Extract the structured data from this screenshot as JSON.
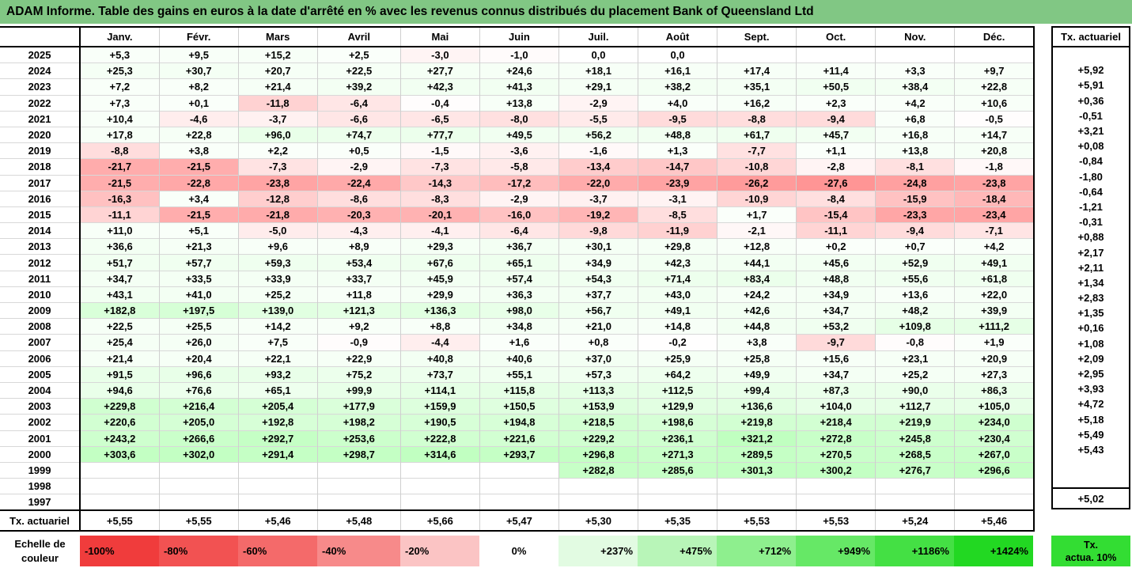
{
  "title": "ADAM Informe. Table des gains en euros à la date d'arrêté en % avec les revenus connus distribués du placement Bank of Queensland Ltd",
  "months": [
    "Janv.",
    "Févr.",
    "Mars",
    "Avril",
    "Mai",
    "Juin",
    "Juil.",
    "Août",
    "Sept.",
    "Oct.",
    "Nov.",
    "Déc."
  ],
  "side_header": "Tx. actuariel",
  "rows": [
    {
      "year": "2025",
      "cells": [
        "+5,3",
        "+9,5",
        "+15,2",
        "+2,5",
        "-3,0",
        "-1,0",
        "0,0",
        "0,0",
        "",
        "",
        "",
        ""
      ],
      "tx": ""
    },
    {
      "year": "2024",
      "cells": [
        "+25,3",
        "+30,7",
        "+20,7",
        "+22,5",
        "+27,7",
        "+24,6",
        "+18,1",
        "+16,1",
        "+17,4",
        "+11,4",
        "+3,3",
        "+9,7"
      ],
      "tx": "+5,92"
    },
    {
      "year": "2023",
      "cells": [
        "+7,2",
        "+8,2",
        "+21,4",
        "+39,2",
        "+42,3",
        "+41,3",
        "+29,1",
        "+38,2",
        "+35,1",
        "+50,5",
        "+38,4",
        "+22,8"
      ],
      "tx": "+5,91"
    },
    {
      "year": "2022",
      "cells": [
        "+7,3",
        "+0,1",
        "-11,8",
        "-6,4",
        "-0,4",
        "+13,8",
        "-2,9",
        "+4,0",
        "+16,2",
        "+2,3",
        "+4,2",
        "+10,6"
      ],
      "tx": "+0,36"
    },
    {
      "year": "2021",
      "cells": [
        "+10,4",
        "-4,6",
        "-3,7",
        "-6,6",
        "-6,5",
        "-8,0",
        "-5,5",
        "-9,5",
        "-8,8",
        "-9,4",
        "+6,8",
        "-0,5"
      ],
      "tx": "-0,51"
    },
    {
      "year": "2020",
      "cells": [
        "+17,8",
        "+22,8",
        "+96,0",
        "+74,7",
        "+77,7",
        "+49,5",
        "+56,2",
        "+48,8",
        "+61,7",
        "+45,7",
        "+16,8",
        "+14,7"
      ],
      "tx": "+3,21"
    },
    {
      "year": "2019",
      "cells": [
        "-8,8",
        "+3,8",
        "+2,2",
        "+0,5",
        "-1,5",
        "-3,6",
        "-1,6",
        "+1,3",
        "-7,7",
        "+1,1",
        "+13,8",
        "+20,8"
      ],
      "tx": "+0,08"
    },
    {
      "year": "2018",
      "cells": [
        "-21,7",
        "-21,5",
        "-7,3",
        "-2,9",
        "-7,3",
        "-5,8",
        "-13,4",
        "-14,7",
        "-10,8",
        "-2,8",
        "-8,1",
        "-1,8"
      ],
      "tx": "-0,84"
    },
    {
      "year": "2017",
      "cells": [
        "-21,5",
        "-22,8",
        "-23,8",
        "-22,4",
        "-14,3",
        "-17,2",
        "-22,0",
        "-23,9",
        "-26,2",
        "-27,6",
        "-24,8",
        "-23,8"
      ],
      "tx": "-1,80"
    },
    {
      "year": "2016",
      "cells": [
        "-16,3",
        "+3,4",
        "-12,8",
        "-8,6",
        "-8,3",
        "-2,9",
        "-3,7",
        "-3,1",
        "-10,9",
        "-8,4",
        "-15,9",
        "-18,4"
      ],
      "tx": "-0,64"
    },
    {
      "year": "2015",
      "cells": [
        "-11,1",
        "-21,5",
        "-21,8",
        "-20,3",
        "-20,1",
        "-16,0",
        "-19,2",
        "-8,5",
        "+1,7",
        "-15,4",
        "-23,3",
        "-23,4"
      ],
      "tx": "-1,21"
    },
    {
      "year": "2014",
      "cells": [
        "+11,0",
        "+5,1",
        "-5,0",
        "-4,3",
        "-4,1",
        "-6,4",
        "-9,8",
        "-11,9",
        "-2,1",
        "-11,1",
        "-9,4",
        "-7,1"
      ],
      "tx": "-0,31"
    },
    {
      "year": "2013",
      "cells": [
        "+36,6",
        "+21,3",
        "+9,6",
        "+8,9",
        "+29,3",
        "+36,7",
        "+30,1",
        "+29,8",
        "+12,8",
        "+0,2",
        "+0,7",
        "+4,2"
      ],
      "tx": "+0,88"
    },
    {
      "year": "2012",
      "cells": [
        "+51,7",
        "+57,7",
        "+59,3",
        "+53,4",
        "+67,6",
        "+65,1",
        "+34,9",
        "+42,3",
        "+44,1",
        "+45,6",
        "+52,9",
        "+49,1"
      ],
      "tx": "+2,17"
    },
    {
      "year": "2011",
      "cells": [
        "+34,7",
        "+33,5",
        "+33,9",
        "+33,7",
        "+45,9",
        "+57,4",
        "+54,3",
        "+71,4",
        "+83,4",
        "+48,8",
        "+55,6",
        "+61,8"
      ],
      "tx": "+2,11"
    },
    {
      "year": "2010",
      "cells": [
        "+43,1",
        "+41,0",
        "+25,2",
        "+11,8",
        "+29,9",
        "+36,3",
        "+37,7",
        "+43,0",
        "+24,2",
        "+34,9",
        "+13,6",
        "+22,0"
      ],
      "tx": "+1,34"
    },
    {
      "year": "2009",
      "cells": [
        "+182,8",
        "+197,5",
        "+139,0",
        "+121,3",
        "+136,3",
        "+98,0",
        "+56,7",
        "+49,1",
        "+42,6",
        "+34,7",
        "+48,2",
        "+39,9"
      ],
      "tx": "+2,83"
    },
    {
      "year": "2008",
      "cells": [
        "+22,5",
        "+25,5",
        "+14,2",
        "+9,2",
        "+8,8",
        "+34,8",
        "+21,0",
        "+14,8",
        "+44,8",
        "+53,2",
        "+109,8",
        "+111,2"
      ],
      "tx": "+1,35"
    },
    {
      "year": "2007",
      "cells": [
        "+25,4",
        "+26,0",
        "+7,5",
        "-0,9",
        "-4,4",
        "+1,6",
        "+0,8",
        "-0,2",
        "+3,8",
        "-9,7",
        "-0,8",
        "+1,9"
      ],
      "tx": "+0,16"
    },
    {
      "year": "2006",
      "cells": [
        "+21,4",
        "+20,4",
        "+22,1",
        "+22,9",
        "+40,8",
        "+40,6",
        "+37,0",
        "+25,9",
        "+25,8",
        "+15,6",
        "+23,1",
        "+20,9"
      ],
      "tx": "+1,08"
    },
    {
      "year": "2005",
      "cells": [
        "+91,5",
        "+96,6",
        "+93,2",
        "+75,2",
        "+73,7",
        "+55,1",
        "+57,3",
        "+64,2",
        "+49,9",
        "+34,7",
        "+25,2",
        "+27,3"
      ],
      "tx": "+2,09"
    },
    {
      "year": "2004",
      "cells": [
        "+94,6",
        "+76,6",
        "+65,1",
        "+99,9",
        "+114,1",
        "+115,8",
        "+113,3",
        "+112,5",
        "+99,4",
        "+87,3",
        "+90,0",
        "+86,3"
      ],
      "tx": "+2,95"
    },
    {
      "year": "2003",
      "cells": [
        "+229,8",
        "+216,4",
        "+205,4",
        "+177,9",
        "+159,9",
        "+150,5",
        "+153,9",
        "+129,9",
        "+136,6",
        "+104,0",
        "+112,7",
        "+105,0"
      ],
      "tx": "+3,93"
    },
    {
      "year": "2002",
      "cells": [
        "+220,6",
        "+205,0",
        "+192,8",
        "+198,2",
        "+190,5",
        "+194,8",
        "+218,5",
        "+198,6",
        "+219,8",
        "+218,4",
        "+219,9",
        "+234,0"
      ],
      "tx": "+4,72"
    },
    {
      "year": "2001",
      "cells": [
        "+243,2",
        "+266,6",
        "+292,7",
        "+253,6",
        "+222,8",
        "+221,6",
        "+229,2",
        "+236,1",
        "+321,2",
        "+272,8",
        "+245,8",
        "+230,4"
      ],
      "tx": "+5,18"
    },
    {
      "year": "2000",
      "cells": [
        "+303,6",
        "+302,0",
        "+291,4",
        "+298,7",
        "+314,6",
        "+293,7",
        "+296,8",
        "+271,3",
        "+289,5",
        "+270,5",
        "+268,5",
        "+267,0"
      ],
      "tx": "+5,49"
    },
    {
      "year": "1999",
      "cells": [
        "",
        "",
        "",
        "",
        "",
        "",
        "+282,8",
        "+285,6",
        "+301,3",
        "+300,2",
        "+276,7",
        "+296,6"
      ],
      "tx": "+5,43"
    },
    {
      "year": "1998",
      "cells": [
        "",
        "",
        "",
        "",
        "",
        "",
        "",
        "",
        "",
        "",
        "",
        ""
      ],
      "tx": ""
    },
    {
      "year": "1997",
      "cells": [
        "",
        "",
        "",
        "",
        "",
        "",
        "",
        "",
        "",
        "",
        "",
        ""
      ],
      "tx": ""
    }
  ],
  "footer": {
    "label": "Tx. actuariel",
    "cells": [
      "+5,55",
      "+5,55",
      "+5,46",
      "+5,48",
      "+5,66",
      "+5,47",
      "+5,30",
      "+5,35",
      "+5,53",
      "+5,53",
      "+5,24",
      "+5,46"
    ],
    "tx": "+5,02"
  },
  "legend": {
    "label_line1": "Echelle de",
    "label_line2": "couleur",
    "items": [
      {
        "text": "-100%",
        "color": "#f03c3c"
      },
      {
        "text": "-80%",
        "color": "#f25252"
      },
      {
        "text": "-60%",
        "color": "#f46a6a"
      },
      {
        "text": "-40%",
        "color": "#f78a8a"
      },
      {
        "text": "-20%",
        "color": "#fbc4c4"
      },
      {
        "text": "0%",
        "color": "#ffffff"
      },
      {
        "text": "+237%",
        "color": "#e2fbe2"
      },
      {
        "text": "+475%",
        "color": "#b8f5b8"
      },
      {
        "text": "+712%",
        "color": "#8eef8e"
      },
      {
        "text": "+949%",
        "color": "#66e866"
      },
      {
        "text": "+1186%",
        "color": "#44e044"
      },
      {
        "text": "+1424%",
        "color": "#22d822"
      }
    ],
    "tx_line1": "Tx.",
    "tx_line2": "actua. 10%"
  }
}
